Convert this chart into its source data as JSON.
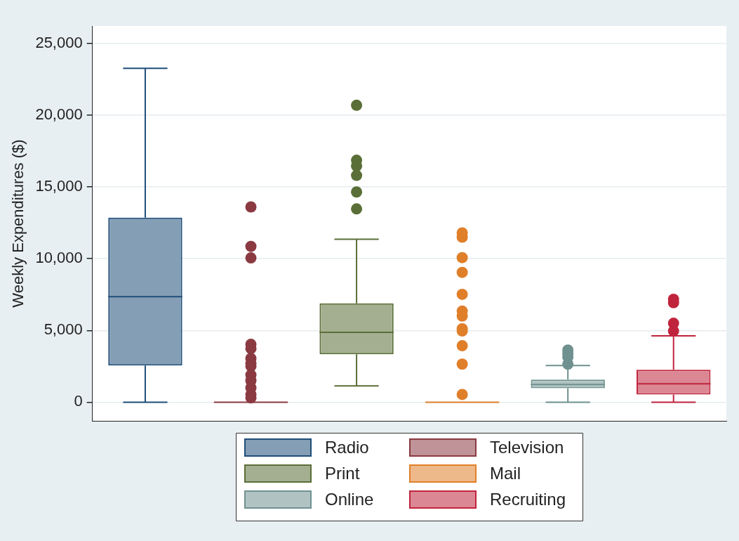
{
  "chart_data": {
    "type": "box",
    "ylabel": "Weekly Expenditures ($)",
    "categories": [
      null,
      null,
      null,
      null,
      null,
      null
    ],
    "series": [
      {
        "name": "Radio",
        "color": "#1f4e79",
        "boxes": [
          {
            "low": 0,
            "q1": 2550,
            "median": 7350,
            "q3": 12850,
            "high": 23250
          },
          null,
          null,
          null,
          null,
          null
        ]
      },
      {
        "name": "Television",
        "color": "#8b3a42",
        "boxes": [
          null,
          {
            "low": 0,
            "q1": 0,
            "median": 0,
            "q3": 0,
            "high": 0,
            "outliers": [
              13600,
              10850,
              10050,
              4030,
              3730,
              3050,
              2700,
              2500,
              1900,
              1500,
              1000,
              540,
              300
            ]
          },
          null,
          null,
          null,
          null
        ]
      },
      {
        "name": "Print",
        "color": "#5a6e37",
        "boxes": [
          null,
          null,
          {
            "low": 1130,
            "q1": 3340,
            "median": 4860,
            "q3": 6880,
            "high": 11350,
            "outliers": [
              20680,
              16850,
              16450,
              15800,
              14640,
              13460
            ]
          },
          null,
          null,
          null
        ]
      },
      {
        "name": "Mail",
        "color": "#e07f2a",
        "boxes": [
          null,
          null,
          null,
          {
            "low": 0,
            "q1": 0,
            "median": 0,
            "q3": 0,
            "high": 0,
            "outliers": [
              11790,
              11490,
              10070,
              9040,
              7510,
              6340,
              6000,
              5110,
              4960,
              3930,
              2650,
              540
            ]
          },
          null,
          null
        ]
      },
      {
        "name": "Online",
        "color": "#6f9190",
        "boxes": [
          null,
          null,
          null,
          null,
          {
            "low": 0,
            "q1": 980,
            "median": 1230,
            "q3": 1570,
            "high": 2550,
            "outliers": [
              3630,
              3390,
              3140,
              2650
            ]
          },
          null
        ]
      },
      {
        "name": "Recruiting",
        "color": "#c0243d",
        "boxes": [
          null,
          null,
          null,
          null,
          null,
          {
            "low": 0,
            "q1": 540,
            "median": 1280,
            "q3": 2260,
            "high": 4620,
            "outliers": [
              7170,
              6930,
              5500,
              4960
            ]
          }
        ]
      }
    ],
    "ylim": [
      -1300,
      26200
    ],
    "yticks": [
      {
        "value": 0,
        "label": "0"
      },
      {
        "value": 5000,
        "label": "5,000"
      },
      {
        "value": 10000,
        "label": "10,000"
      },
      {
        "value": 15000,
        "label": "15,000"
      },
      {
        "value": 20000,
        "label": "20,000"
      },
      {
        "value": 25000,
        "label": "25,000"
      }
    ],
    "grid": "y",
    "legend": "bottom",
    "tick_labels": "y",
    "marker": "circle"
  }
}
